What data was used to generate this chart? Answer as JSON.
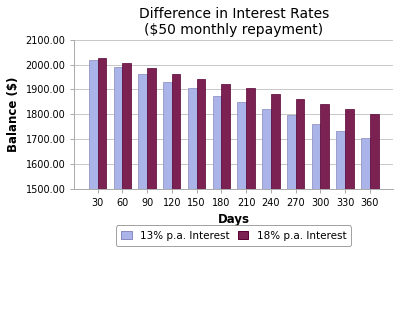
{
  "title": "Difference in Interest Rates",
  "subtitle": "($50 monthly repayment)",
  "xlabel": "Days",
  "ylabel": "Balance ($)",
  "days": [
    30,
    60,
    90,
    120,
    150,
    180,
    210,
    240,
    270,
    300,
    330,
    360
  ],
  "rate_13": [
    2018,
    1988,
    1960,
    1930,
    1905,
    1873,
    1848,
    1820,
    1795,
    1762,
    1730,
    1705
  ],
  "rate_18": [
    2028,
    2005,
    1985,
    1963,
    1943,
    1922,
    1905,
    1883,
    1860,
    1842,
    1820,
    1802
  ],
  "color_13": "#aab4e8",
  "color_18": "#7b2252",
  "ylim_min": 1500,
  "ylim_max": 2100,
  "yticks": [
    1500,
    1600,
    1700,
    1800,
    1900,
    2000,
    2100
  ],
  "legend_labels": [
    "13% p.a. Interest",
    "18% p.a. Interest"
  ],
  "background_color": "#ffffff",
  "plot_bg_color": "#ffffff",
  "grid_color": "#c8c8c8",
  "title_fontsize": 10,
  "tick_fontsize": 7,
  "label_fontsize": 8.5
}
